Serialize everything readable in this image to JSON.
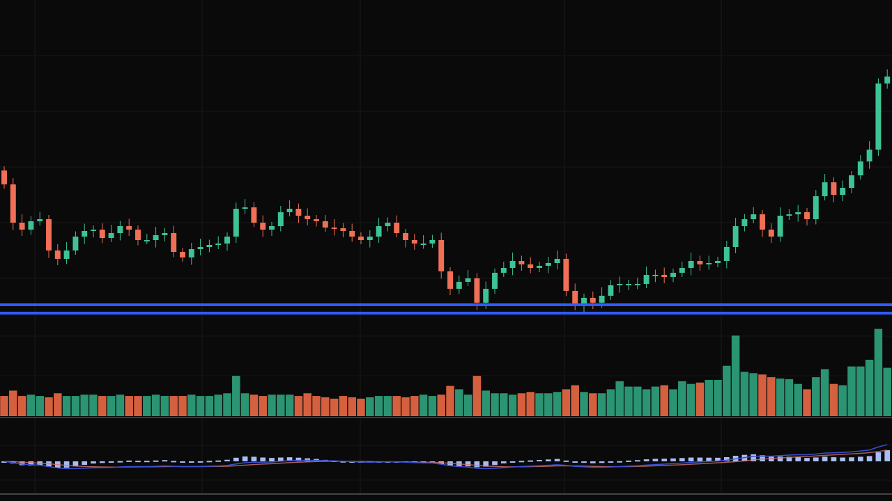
{
  "chart_data": {
    "type": "candlestick",
    "title": "",
    "xlabel": "",
    "ylabel": "",
    "grid": true,
    "ylim": [
      0.5,
      46
    ],
    "closes": [
      19.5,
      14,
      13,
      14.2,
      14.5,
      10,
      8.8,
      10,
      12,
      12.8,
      13,
      11.8,
      12.5,
      13.5,
      13,
      11.5,
      11.5,
      12.2,
      12.5,
      9.8,
      9,
      10.2,
      10.5,
      10.8,
      11,
      12,
      16,
      16.2,
      14,
      13,
      13.5,
      15.5,
      16,
      15,
      14.5,
      14.2,
      13.3,
      13.2,
      12.8,
      12,
      11.5,
      12,
      13.5,
      14,
      12.5,
      11.5,
      11,
      11,
      11.5,
      7,
      4.5,
      5.5,
      6,
      2.5,
      4.5,
      6.8,
      7.5,
      8.5,
      8,
      7.5,
      7.8,
      8.2,
      8.8,
      4.2,
      2,
      3.2,
      2.5,
      3.5,
      5,
      5.2,
      5.2,
      5.2,
      6.5,
      6.5,
      6.2,
      6.8,
      7.5,
      8.5,
      8,
      8.2,
      8.5,
      10.5,
      13.5,
      14.5,
      15.2,
      13,
      12,
      15,
      15.2,
      15.5,
      14.5,
      17.8,
      19.8,
      18,
      19,
      20.8,
      22.8,
      24.5,
      34,
      35
    ],
    "volumes": [
      30,
      38,
      30,
      32,
      30,
      28,
      34,
      30,
      30,
      32,
      32,
      30,
      30,
      32,
      30,
      30,
      30,
      32,
      30,
      30,
      30,
      32,
      30,
      30,
      32,
      34,
      60,
      34,
      32,
      30,
      32,
      32,
      32,
      30,
      34,
      30,
      28,
      26,
      30,
      28,
      26,
      28,
      30,
      30,
      30,
      28,
      30,
      32,
      30,
      32,
      45,
      40,
      32,
      60,
      38,
      34,
      34,
      32,
      34,
      36,
      34,
      34,
      36,
      40,
      46,
      36,
      34,
      34,
      40,
      52,
      44,
      44,
      40,
      44,
      46,
      40,
      52,
      48,
      50,
      54,
      54,
      75,
      120,
      66,
      64,
      62,
      58,
      56,
      55,
      48,
      40,
      58,
      70,
      48,
      46,
      74,
      74,
      84,
      130,
      72
    ],
    "horizontal_lines": [
      2.2,
      1.0
    ],
    "colors": {
      "up": "#3ec395",
      "down": "#ef7057",
      "vol_up": "#2b9472",
      "vol_down": "#d4603f",
      "hline": "#2f5bff",
      "macd": "#3a4fd0",
      "signal": "#d07070",
      "hist": "#a9bdf5"
    }
  }
}
